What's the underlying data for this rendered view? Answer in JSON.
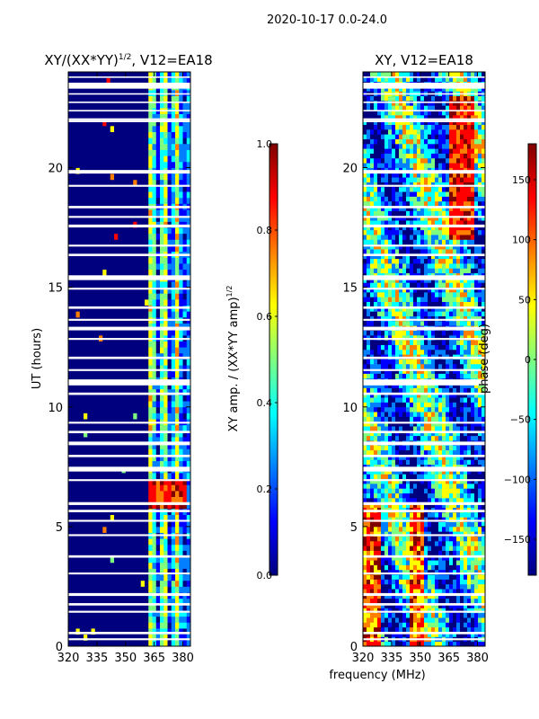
{
  "suptitle": "2020-10-17 0.0-24.0",
  "xlabel_common": "frequency (MHz)",
  "colormap": [
    "#00007f",
    "#0000ff",
    "#007fff",
    "#00ffff",
    "#7fff7f",
    "#ffff00",
    "#ff7f00",
    "#ff0000",
    "#7f0000"
  ],
  "chart_data": [
    {
      "type": "heatmap",
      "title_main": "XY/(XX*YY)",
      "title_sup": "1/2",
      "title_tail": ", V12=EA18",
      "xlabel": "",
      "ylabel": "UT (hours)",
      "xlim": [
        320,
        384
      ],
      "ylim": [
        0,
        24
      ],
      "xticks": [
        320,
        335,
        350,
        365,
        380
      ],
      "yticks": [
        0,
        5,
        10,
        15,
        20
      ],
      "hot_band_mhz": [
        362,
        381
      ],
      "colorbar": {
        "label_main": "XY amp. / (XX*YY amp)",
        "label_sup": "1/2",
        "range": [
          0.0,
          1.0
        ],
        "ticks": [
          "0.0",
          "0.2",
          "0.4",
          "0.6",
          "0.8",
          "1.0"
        ]
      }
    },
    {
      "type": "heatmap",
      "title_main": "XY, V12=EA18",
      "title_sup": "",
      "title_tail": "",
      "xlabel": "frequency (MHz)",
      "ylabel": "",
      "xlim": [
        320,
        384
      ],
      "ylim": [
        0,
        24
      ],
      "xticks": [
        320,
        335,
        350,
        365,
        380
      ],
      "yticks": [
        0,
        5,
        10,
        15,
        20
      ],
      "colorbar": {
        "label_main": "phase (deg)",
        "label_sup": "",
        "range": [
          -180,
          180
        ],
        "ticks": [
          "−150",
          "−100",
          "−50",
          "0",
          "50",
          "100",
          "150"
        ]
      }
    }
  ]
}
